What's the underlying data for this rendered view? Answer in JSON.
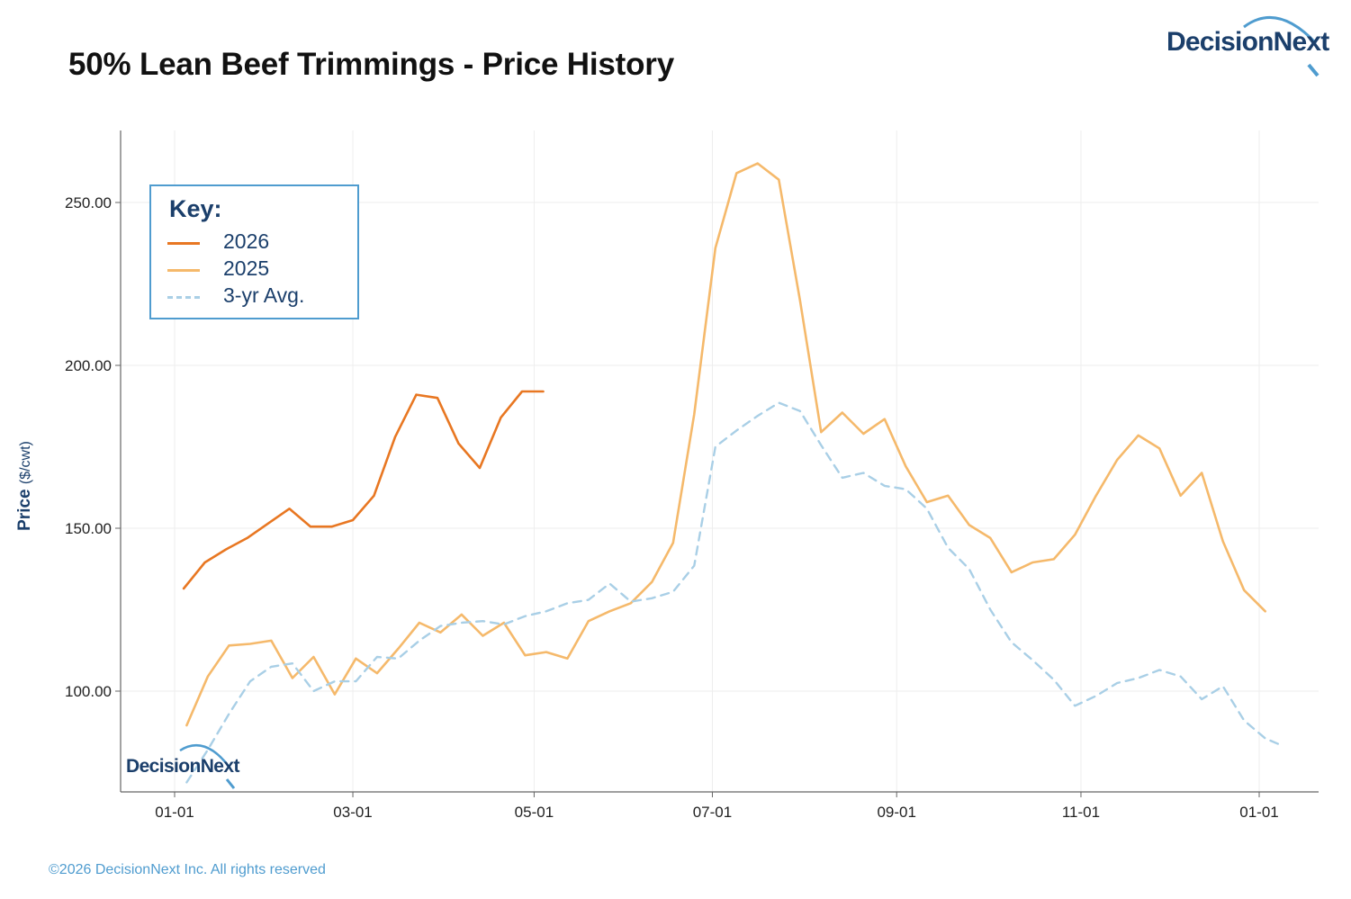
{
  "header": {
    "title": "50% Lean Beef Trimmings - Price History",
    "brand": "DecisionNext"
  },
  "footer": {
    "copyright": "©2026 DecisionNext Inc. All rights reserved"
  },
  "legend": {
    "title": "Key:",
    "items": [
      {
        "label": "2026",
        "color": "#e87722",
        "dash": "solid"
      },
      {
        "label": "2025",
        "color": "#f5b96b",
        "dash": "solid"
      },
      {
        "label": "3-yr Avg.",
        "color": "#a9cfe6",
        "dash": "dashed"
      }
    ]
  },
  "watermark": {
    "text": "DecisionNext"
  },
  "colors": {
    "accent": "#1b3f6b",
    "footer": "#4f9ccf",
    "grid": "#eeeeee",
    "axis": "#666666"
  },
  "chart_data": {
    "type": "line",
    "title": "50% Lean Beef Trimmings - Price History",
    "ylabel": "Price",
    "ylabel_unit": "($/cwt)",
    "xlabel": "",
    "ylim": [
      68,
      270
    ],
    "xlim": [
      "12-24",
      "01-11"
    ],
    "y_ticks": [
      100,
      150,
      200,
      250
    ],
    "y_tick_labels": [
      "100.00",
      "150.00",
      "200.00",
      "250.00"
    ],
    "x_ticks": [
      "01-01",
      "03-01",
      "05-01",
      "07-01",
      "09-01",
      "11-01",
      "01-01"
    ],
    "x_tick_days": [
      0,
      59,
      119,
      178,
      239,
      300,
      359
    ],
    "grid": true,
    "legend_position": "top-left",
    "series": [
      {
        "name": "2026",
        "color": "#e87722",
        "dash": "solid",
        "points": [
          {
            "day": 3,
            "y": 131.5
          },
          {
            "day": 10,
            "y": 139.5
          },
          {
            "day": 17,
            "y": 143.5
          },
          {
            "day": 24,
            "y": 147.0
          },
          {
            "day": 31,
            "y": 151.5
          },
          {
            "day": 38,
            "y": 156.0
          },
          {
            "day": 45,
            "y": 150.5
          },
          {
            "day": 52,
            "y": 150.5
          },
          {
            "day": 59,
            "y": 152.5
          },
          {
            "day": 66,
            "y": 160.0
          },
          {
            "day": 73,
            "y": 178.0
          },
          {
            "day": 80,
            "y": 191.0
          },
          {
            "day": 87,
            "y": 190.0
          },
          {
            "day": 94,
            "y": 176.0
          },
          {
            "day": 101,
            "y": 168.5
          },
          {
            "day": 108,
            "y": 184.0
          },
          {
            "day": 115,
            "y": 192.0
          },
          {
            "day": 122,
            "y": 192.0
          }
        ]
      },
      {
        "name": "2025",
        "color": "#f5b96b",
        "dash": "solid",
        "points": [
          {
            "day": 4,
            "y": 89.5
          },
          {
            "day": 11,
            "y": 104.5
          },
          {
            "day": 18,
            "y": 114.0
          },
          {
            "day": 25,
            "y": 114.5
          },
          {
            "day": 32,
            "y": 115.5
          },
          {
            "day": 39,
            "y": 104.0
          },
          {
            "day": 46,
            "y": 110.5
          },
          {
            "day": 53,
            "y": 99.0
          },
          {
            "day": 60,
            "y": 110.0
          },
          {
            "day": 67,
            "y": 105.5
          },
          {
            "day": 74,
            "y": 113.0
          },
          {
            "day": 81,
            "y": 121.0
          },
          {
            "day": 88,
            "y": 118.0
          },
          {
            "day": 95,
            "y": 123.5
          },
          {
            "day": 102,
            "y": 117.0
          },
          {
            "day": 109,
            "y": 121.0
          },
          {
            "day": 116,
            "y": 111.0
          },
          {
            "day": 123,
            "y": 112.0
          },
          {
            "day": 130,
            "y": 110.0
          },
          {
            "day": 137,
            "y": 121.5
          },
          {
            "day": 144,
            "y": 124.5
          },
          {
            "day": 151,
            "y": 127.0
          },
          {
            "day": 158,
            "y": 133.5
          },
          {
            "day": 165,
            "y": 145.5
          },
          {
            "day": 172,
            "y": 185.0
          },
          {
            "day": 179,
            "y": 236.0
          },
          {
            "day": 186,
            "y": 259.0
          },
          {
            "day": 193,
            "y": 262.0
          },
          {
            "day": 200,
            "y": 257.0
          },
          {
            "day": 207,
            "y": 220.0
          },
          {
            "day": 214,
            "y": 179.5
          },
          {
            "day": 221,
            "y": 185.5
          },
          {
            "day": 228,
            "y": 179.0
          },
          {
            "day": 235,
            "y": 183.5
          },
          {
            "day": 242,
            "y": 169.0
          },
          {
            "day": 249,
            "y": 158.0
          },
          {
            "day": 256,
            "y": 160.0
          },
          {
            "day": 263,
            "y": 151.0
          },
          {
            "day": 270,
            "y": 147.0
          },
          {
            "day": 277,
            "y": 136.5
          },
          {
            "day": 284,
            "y": 139.5
          },
          {
            "day": 291,
            "y": 140.5
          },
          {
            "day": 298,
            "y": 148.0
          },
          {
            "day": 305,
            "y": 160.0
          },
          {
            "day": 312,
            "y": 171.0
          },
          {
            "day": 319,
            "y": 178.5
          },
          {
            "day": 326,
            "y": 174.5
          },
          {
            "day": 333,
            "y": 160.0
          },
          {
            "day": 340,
            "y": 167.0
          },
          {
            "day": 347,
            "y": 146.0
          },
          {
            "day": 354,
            "y": 131.0
          },
          {
            "day": 361,
            "y": 124.5
          }
        ]
      },
      {
        "name": "3-yr Avg.",
        "color": "#a9cfe6",
        "dash": "dashed",
        "points": [
          {
            "day": 4,
            "y": 72.0
          },
          {
            "day": 11,
            "y": 82.0
          },
          {
            "day": 18,
            "y": 93.0
          },
          {
            "day": 25,
            "y": 103.0
          },
          {
            "day": 32,
            "y": 107.5
          },
          {
            "day": 39,
            "y": 108.5
          },
          {
            "day": 46,
            "y": 100.0
          },
          {
            "day": 53,
            "y": 103.0
          },
          {
            "day": 60,
            "y": 103.0
          },
          {
            "day": 67,
            "y": 110.5
          },
          {
            "day": 74,
            "y": 110.0
          },
          {
            "day": 81,
            "y": 115.5
          },
          {
            "day": 88,
            "y": 120.0
          },
          {
            "day": 95,
            "y": 121.0
          },
          {
            "day": 102,
            "y": 121.5
          },
          {
            "day": 109,
            "y": 120.5
          },
          {
            "day": 116,
            "y": 123.0
          },
          {
            "day": 123,
            "y": 124.5
          },
          {
            "day": 130,
            "y": 127.0
          },
          {
            "day": 137,
            "y": 128.0
          },
          {
            "day": 144,
            "y": 133.0
          },
          {
            "day": 151,
            "y": 127.5
          },
          {
            "day": 158,
            "y": 128.5
          },
          {
            "day": 165,
            "y": 130.5
          },
          {
            "day": 172,
            "y": 138.5
          },
          {
            "day": 179,
            "y": 175.0
          },
          {
            "day": 186,
            "y": 180.0
          },
          {
            "day": 193,
            "y": 184.5
          },
          {
            "day": 200,
            "y": 188.5
          },
          {
            "day": 207,
            "y": 186.0
          },
          {
            "day": 214,
            "y": 175.5
          },
          {
            "day": 221,
            "y": 165.5
          },
          {
            "day": 228,
            "y": 167.0
          },
          {
            "day": 235,
            "y": 163.0
          },
          {
            "day": 242,
            "y": 162.0
          },
          {
            "day": 249,
            "y": 156.0
          },
          {
            "day": 256,
            "y": 144.0
          },
          {
            "day": 263,
            "y": 137.5
          },
          {
            "day": 270,
            "y": 125.0
          },
          {
            "day": 277,
            "y": 115.0
          },
          {
            "day": 284,
            "y": 109.5
          },
          {
            "day": 291,
            "y": 103.5
          },
          {
            "day": 298,
            "y": 95.5
          },
          {
            "day": 305,
            "y": 98.5
          },
          {
            "day": 312,
            "y": 102.5
          },
          {
            "day": 319,
            "y": 104.0
          },
          {
            "day": 326,
            "y": 106.5
          },
          {
            "day": 333,
            "y": 104.5
          },
          {
            "day": 340,
            "y": 97.5
          },
          {
            "day": 347,
            "y": 101.5
          },
          {
            "day": 354,
            "y": 91.0
          },
          {
            "day": 361,
            "y": 85.5
          },
          {
            "day": 366,
            "y": 83.5
          }
        ]
      }
    ]
  }
}
